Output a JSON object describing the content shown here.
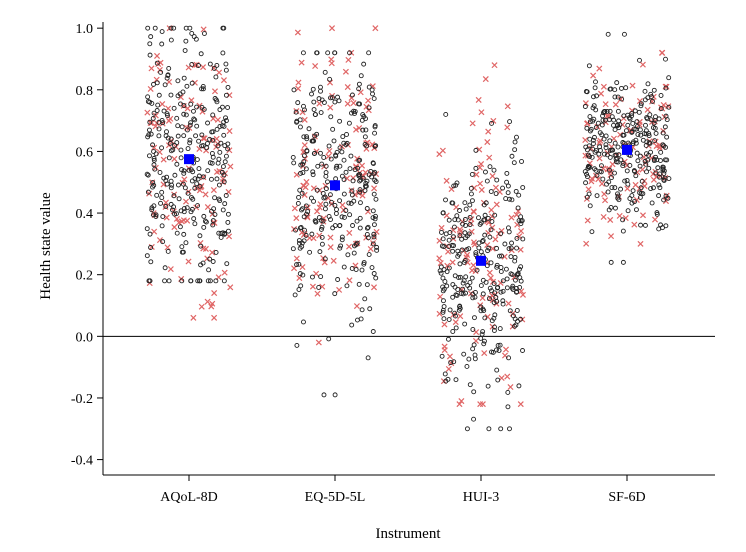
{
  "chart_data": {
    "type": "scatter",
    "title": "",
    "xlabel": "Instrument",
    "ylabel": "Health state value",
    "categories": [
      "AQoL-8D",
      "EQ-5D-5L",
      "HUI-3",
      "SF-6D"
    ],
    "ylim": [
      -0.45,
      1.02
    ],
    "yticks": [
      -0.4,
      -0.2,
      0.0,
      0.2,
      0.4,
      0.6,
      0.8,
      1.0
    ],
    "ytick_labels": [
      "-0.4",
      "-0.2",
      "0.0",
      "0.2",
      "0.4",
      "0.6",
      "0.8",
      "1.0"
    ],
    "reference_line_y": 0.0,
    "grid": false,
    "legend": "none",
    "means": [
      0.575,
      0.49,
      0.245,
      0.605
    ],
    "distributions": [
      {
        "category": "AQoL-8D",
        "circle": {
          "count": 300,
          "min": 0.18,
          "max": 1.0,
          "center": 0.58,
          "spread": 0.2
        },
        "cross": {
          "count": 125,
          "min": 0.06,
          "max": 1.0,
          "center": 0.55,
          "spread": 0.22
        }
      },
      {
        "category": "EQ-5D-5L",
        "circle": {
          "count": 290,
          "min": -0.19,
          "max": 0.92,
          "center": 0.5,
          "spread": 0.2
        },
        "cross": {
          "count": 125,
          "min": -0.02,
          "max": 1.0,
          "center": 0.5,
          "spread": 0.22
        }
      },
      {
        "category": "HUI-3",
        "circle": {
          "count": 290,
          "min": -0.3,
          "max": 0.72,
          "center": 0.22,
          "spread": 0.2
        },
        "cross": {
          "count": 125,
          "min": -0.22,
          "max": 0.88,
          "center": 0.28,
          "spread": 0.26
        }
      },
      {
        "category": "SF-6D",
        "circle": {
          "count": 290,
          "min": 0.24,
          "max": 0.98,
          "center": 0.6,
          "spread": 0.12
        },
        "cross": {
          "count": 110,
          "min": 0.3,
          "max": 0.92,
          "center": 0.6,
          "spread": 0.13
        }
      }
    ],
    "colors": {
      "circle": "#222222",
      "cross": "#e06666",
      "mean": "#0000ff",
      "axis": "#000000"
    }
  }
}
